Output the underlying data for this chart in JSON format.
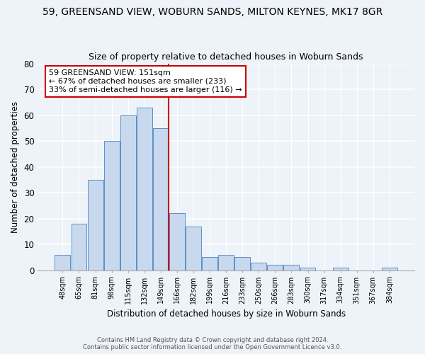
{
  "title": "59, GREENSAND VIEW, WOBURN SANDS, MILTON KEYNES, MK17 8GR",
  "subtitle": "Size of property relative to detached houses in Woburn Sands",
  "xlabel": "Distribution of detached houses by size in Woburn Sands",
  "ylabel": "Number of detached properties",
  "bar_labels": [
    "48sqm",
    "65sqm",
    "81sqm",
    "98sqm",
    "115sqm",
    "132sqm",
    "149sqm",
    "166sqm",
    "182sqm",
    "199sqm",
    "216sqm",
    "233sqm",
    "250sqm",
    "266sqm",
    "283sqm",
    "300sqm",
    "317sqm",
    "334sqm",
    "351sqm",
    "367sqm",
    "384sqm"
  ],
  "bar_values": [
    6,
    18,
    35,
    50,
    60,
    63,
    55,
    22,
    17,
    5,
    6,
    5,
    3,
    2,
    2,
    1,
    0,
    1,
    0,
    0,
    1
  ],
  "bar_color": "#c8d9ee",
  "bar_edge_color": "#5b8fc7",
  "vline_color": "#cc0000",
  "annotation_text": "59 GREENSAND VIEW: 151sqm\n← 67% of detached houses are smaller (233)\n33% of semi-detached houses are larger (116) →",
  "annotation_box_color": "#ffffff",
  "annotation_box_edge": "#cc0000",
  "ylim": [
    0,
    80
  ],
  "yticks": [
    0,
    10,
    20,
    30,
    40,
    50,
    60,
    70,
    80
  ],
  "footer1": "Contains HM Land Registry data © Crown copyright and database right 2024.",
  "footer2": "Contains public sector information licensed under the Open Government Licence v3.0.",
  "bg_color": "#eef2f9",
  "title_fontsize": 10,
  "subtitle_fontsize": 9
}
